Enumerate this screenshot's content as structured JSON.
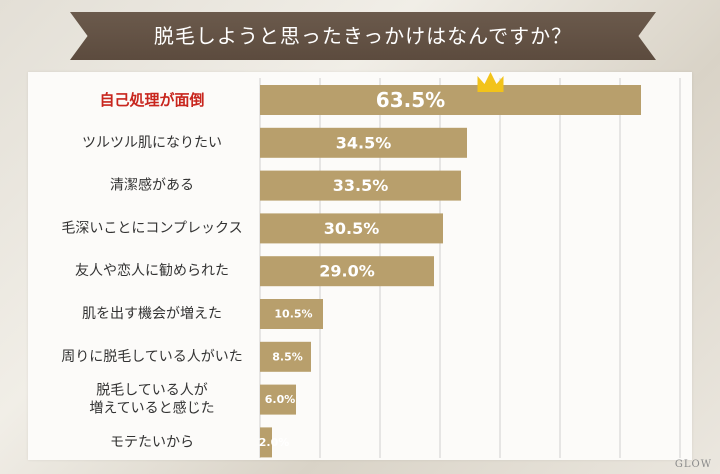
{
  "title": "脱毛しようと思ったきっかけはなんですか？",
  "watermark": "GLOW",
  "colors": {
    "bar": "#b89f6c",
    "highlight_label": "#c8261e",
    "banner": "#5f4e41",
    "crown": "#f2c31a",
    "grid": "#cfcfcf"
  },
  "chart_data": {
    "type": "bar",
    "orientation": "horizontal",
    "categories": [
      "自己処理が面倒",
      "ツルツル肌になりたい",
      "清潔感がある",
      "毛深いことにコンプレックス",
      "友人や恋人に勧められた",
      "肌を出す機会が増えた",
      "周りに脱毛している人がいた",
      "脱毛している人が\n増えていると感じた",
      "モテたいから"
    ],
    "values": [
      63.5,
      34.5,
      33.5,
      30.5,
      29.0,
      10.5,
      8.5,
      6.0,
      2.0
    ],
    "value_labels": [
      "63.5%",
      "34.5%",
      "33.5%",
      "30.5%",
      "29.0%",
      "10.5%",
      "8.5%",
      "6.0%",
      "2.0%"
    ],
    "highlight_index": 0,
    "xlim": [
      0,
      70
    ],
    "grid": true
  }
}
